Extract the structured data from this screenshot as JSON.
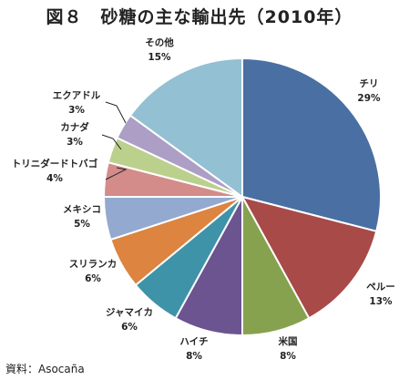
{
  "chart_data": {
    "type": "pie",
    "title": "図８　砂糖の主な輸出先（2010年）",
    "unit": "%",
    "slices": [
      {
        "label": "チリ",
        "value": 29,
        "color": "#4a6fa3"
      },
      {
        "label": "ペルー",
        "value": 13,
        "color": "#a84a48"
      },
      {
        "label": "米国",
        "value": 8,
        "color": "#86a24e"
      },
      {
        "label": "ハイチ",
        "value": 8,
        "color": "#6b5490"
      },
      {
        "label": "ジャマイカ",
        "value": 6,
        "color": "#3f93a8"
      },
      {
        "label": "スリランカ",
        "value": 6,
        "color": "#dc8440"
      },
      {
        "label": "メキシコ",
        "value": 5,
        "color": "#93a9d0"
      },
      {
        "label": "トリニダードトバゴ",
        "value": 4,
        "color": "#d38c8a"
      },
      {
        "label": "カナダ",
        "value": 3,
        "color": "#bcd08e"
      },
      {
        "label": "エクアドル",
        "value": 3,
        "color": "#ac9ec4"
      },
      {
        "label": "その他",
        "value": 15,
        "color": "#93c0d3"
      }
    ]
  },
  "source": "資料：Asocaña"
}
